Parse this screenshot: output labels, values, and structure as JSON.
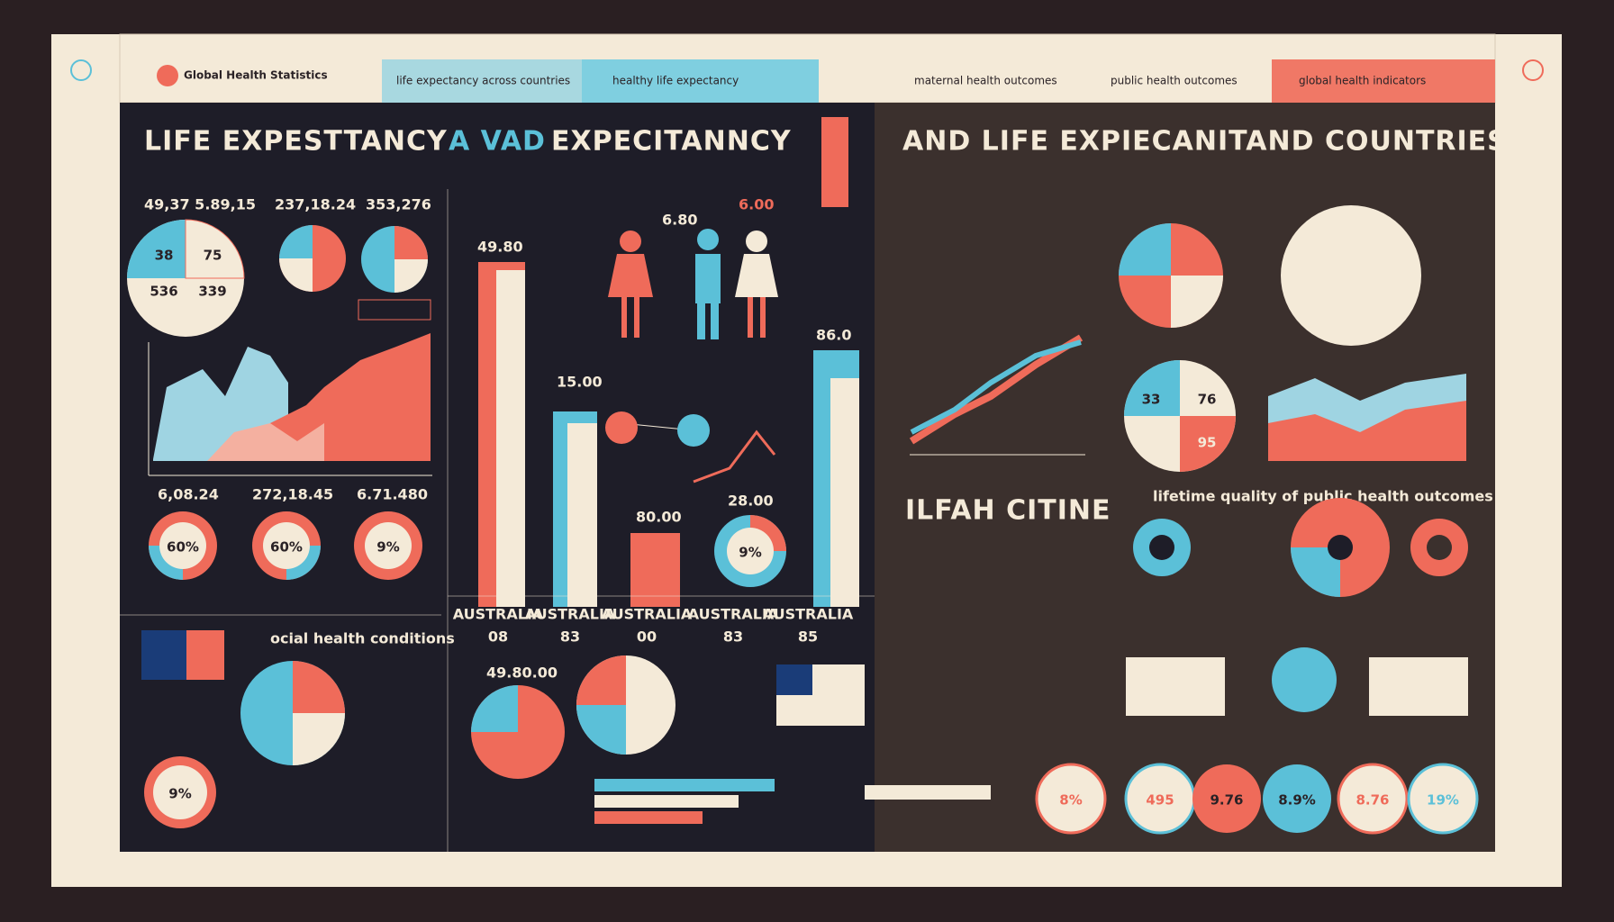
{
  "header": {
    "logo": "Global Health Statistics",
    "tabs": [
      "life expectancy across countries",
      "healthy life expectancy",
      "maternal health outcomes",
      "public health outcomes",
      "global health indicators"
    ]
  },
  "titles": {
    "left_a": "LIFE EXPESTTANCY",
    "left_b": "A VAD",
    "left_c": "EXPECITANNCY",
    "right": "AND LIFE EXPIECANITAND COUNTRIES",
    "sub": "ILFAH CITINE"
  },
  "left": {
    "stats": [
      "49,37 5.89,15",
      "237,18.24",
      "353,276"
    ],
    "stats2": [
      "6,08.24",
      "272,18.45",
      "6.71.480"
    ],
    "donuts": [
      "60%",
      "60%",
      "9%"
    ],
    "pie": [
      "38",
      "75",
      "536",
      "339"
    ],
    "small": "9%",
    "section": "ocial health conditions"
  },
  "center": {
    "bars": [
      "49.80",
      "15.00",
      "86.0"
    ],
    "top": [
      "6.00",
      "6.80"
    ],
    "mid": [
      "80.00",
      "28.00"
    ],
    "donut": "9%",
    "countries": [
      "AUSTRALIA",
      "AUSTRALIA",
      "AUSTRALIA",
      "AUSTRALIA",
      "AUSTRALIA"
    ],
    "country_values": [
      "08",
      "83",
      "00",
      "83",
      "85"
    ],
    "pie_title": "49.80.00"
  },
  "right": {
    "pie": [
      "33",
      "76",
      "95"
    ],
    "note": "lifetime quality of public health outcomes",
    "circles": [
      "8%",
      "495",
      "9.76",
      "8.9%",
      "8.76",
      "19%"
    ]
  }
}
